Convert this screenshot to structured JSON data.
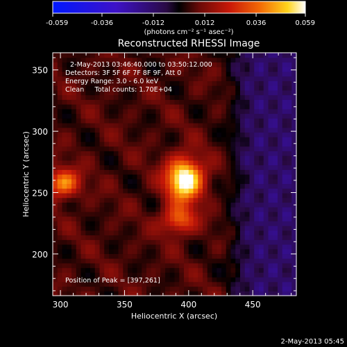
{
  "chart_data": {
    "type": "heatmap",
    "title": "Reconstructed RHESSI Image",
    "xlabel": "Heliocentric X (arcsec)",
    "ylabel": "Heliocentric Y (arcsec)",
    "xlim": [
      294,
      484
    ],
    "ylim": [
      166,
      364
    ],
    "x_ticks": [
      300,
      350,
      400,
      450
    ],
    "y_ticks": [
      200,
      250,
      300,
      350
    ],
    "colorbar": {
      "range": [
        -0.059,
        0.059
      ],
      "ticks": [
        "-0.059",
        "-0.036",
        "-0.012",
        "0.012",
        "0.036",
        "0.059"
      ],
      "tick_values": [
        -0.059,
        -0.036,
        -0.012,
        0.012,
        0.036,
        0.059
      ],
      "unit_label": "(photons cm⁻² s⁻¹ asec⁻²)"
    },
    "annotations": {
      "time_range": "2-May-2013 03:46:40.000 to 03:50:12.000",
      "detectors": "Detectors: 3F 5F 6F 7F 8F 9F, Att 0",
      "energy": "Energy Range: 3.0 - 6.0 keV",
      "clean": "Clean     Total counts: 1.70E+04",
      "peak": "Position of Peak = [397,261]"
    },
    "peak": {
      "x": 397,
      "y": 261,
      "value": 0.059
    },
    "sources": [
      {
        "x": 397,
        "y": 261,
        "amplitude": 0.059
      },
      {
        "x": 302,
        "y": 258,
        "amplitude": 0.036
      },
      {
        "x": 392,
        "y": 228,
        "amplitude": 0.03
      }
    ],
    "background_level": 0.012,
    "negative_region": {
      "x_range": [
        450,
        484
      ],
      "y_range": [
        166,
        364
      ],
      "level": -0.02
    }
  },
  "footer_timestamp": "2-May-2013 05:45"
}
